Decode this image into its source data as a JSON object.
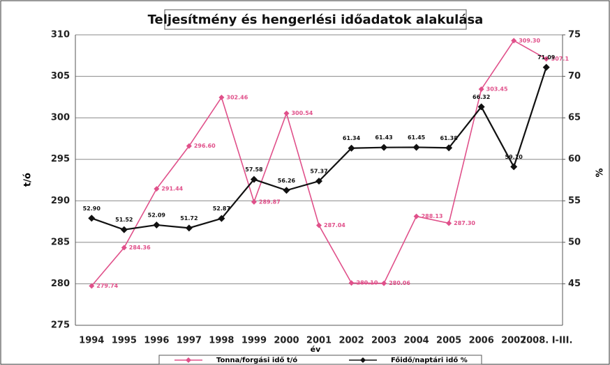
{
  "chart_data": {
    "type": "line",
    "title": "Teljesítmény és hengerlési időadatok  alakulása",
    "xlabel": "év",
    "ylabel": "t/ó",
    "y2label": "%",
    "categories": [
      "1994",
      "1995",
      "1996",
      "1997",
      "1998",
      "1999",
      "2000",
      "2001",
      "2002",
      "2003",
      "2004",
      "2005",
      "2006",
      "2007",
      "2008. I-III."
    ],
    "series": [
      {
        "name": "Tonna/forgási idő t/ó",
        "color": "#e0508a",
        "values": [
          279.74,
          284.36,
          291.44,
          296.6,
          302.46,
          289.87,
          300.54,
          287.04,
          280.1,
          280.06,
          288.13,
          287.3,
          303.45,
          309.3,
          307.1
        ],
        "value_labels": [
          "279.74",
          "284.36",
          "291.44",
          "296.60",
          "302.46",
          "289.87",
          "300.54",
          "287.04",
          "280.10",
          "280.06",
          "288.13",
          "287.30",
          "303.45",
          "309.30",
          "307.1"
        ]
      },
      {
        "name": "Főidő/naptári idő %",
        "color": "#111111",
        "axis": "y2",
        "values": [
          52.9,
          51.52,
          52.09,
          51.72,
          52.87,
          57.58,
          56.26,
          57.37,
          61.34,
          61.43,
          61.45,
          61.38,
          66.32,
          59.1,
          71.09
        ],
        "value_labels": [
          "52.90",
          "51.52",
          "52.09",
          "51.72",
          "52.87",
          "57.58",
          "56.26",
          "57.37",
          "61.34",
          "61.43",
          "61.45",
          "61.38",
          "66.32",
          "59.10",
          "71.09"
        ]
      }
    ],
    "ylim": [
      275,
      310
    ],
    "yticks": [
      275,
      280,
      285,
      290,
      295,
      300,
      305,
      310
    ],
    "y2lim": [
      40,
      75
    ],
    "y2ticks": [
      45,
      50,
      55,
      60,
      65,
      70,
      75
    ],
    "grid": true
  }
}
